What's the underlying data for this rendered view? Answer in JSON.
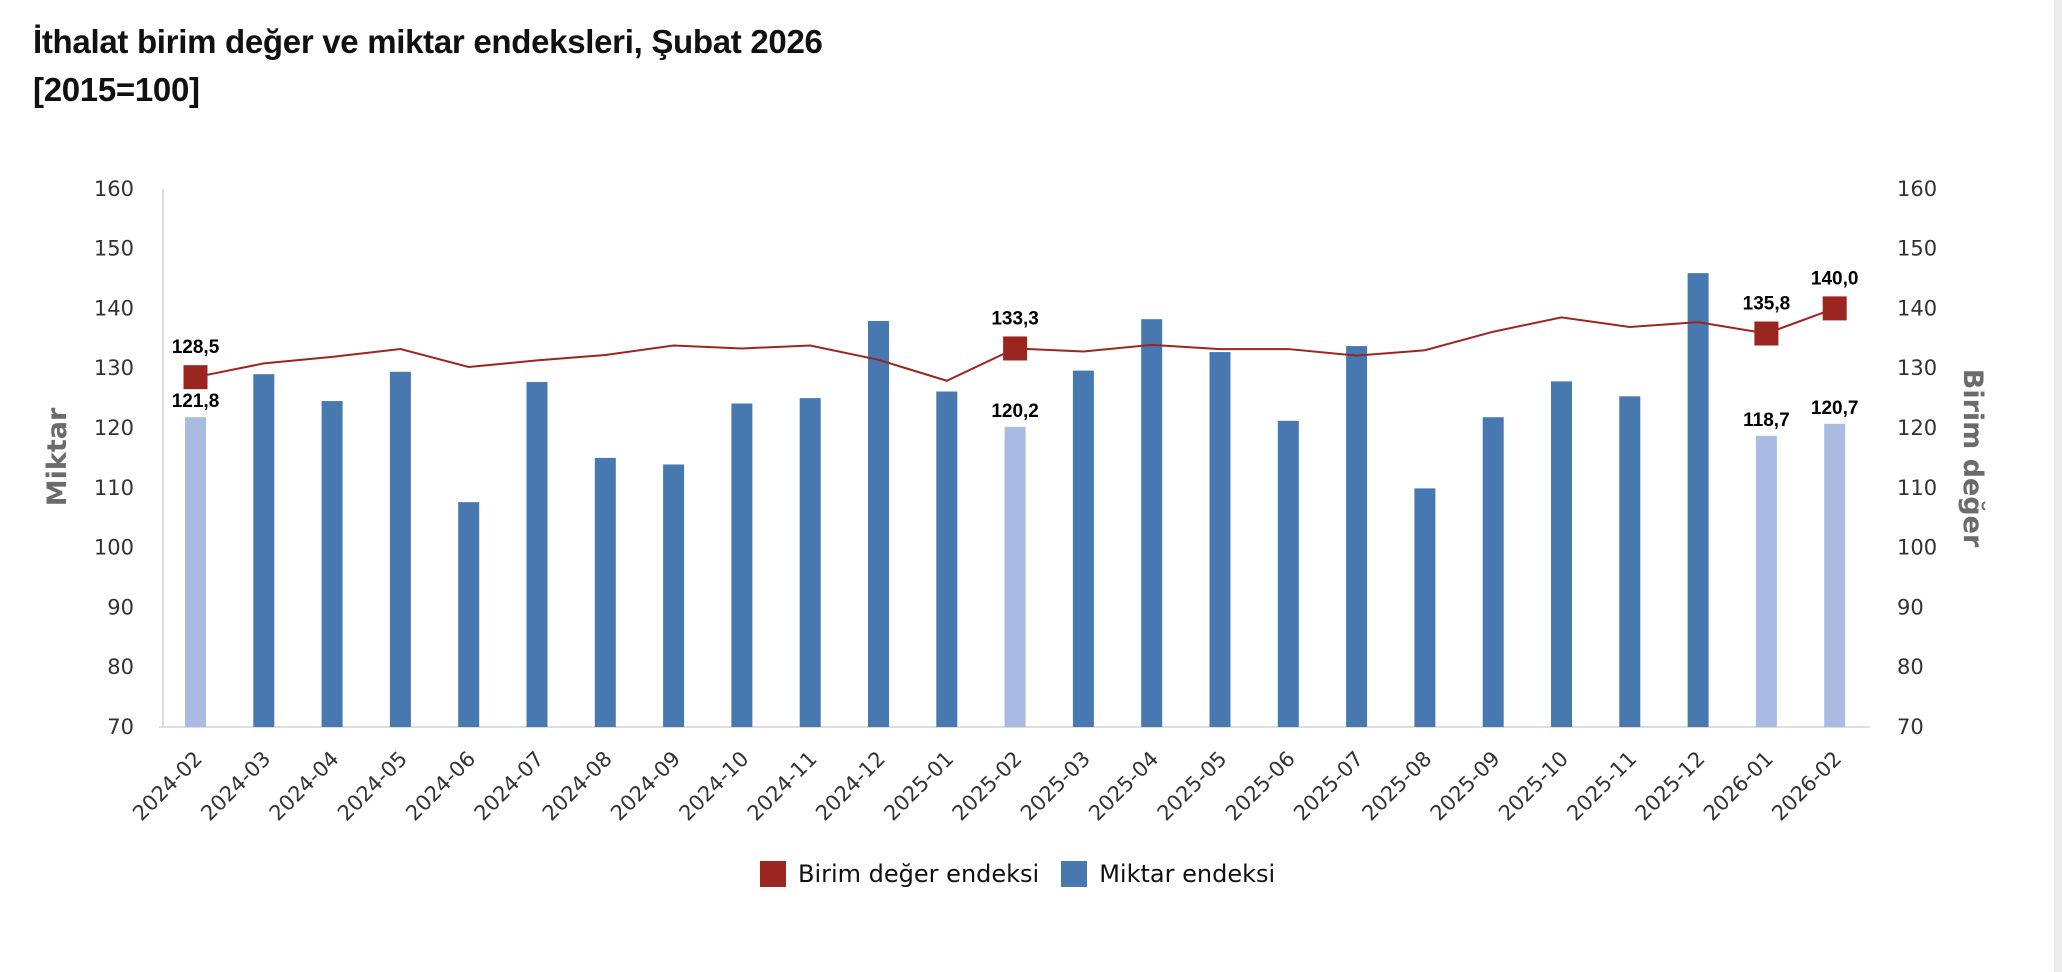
{
  "title": {
    "line1": "İthalat birim değer ve miktar endeksleri, Şubat 2026",
    "line2": "[2015=100]"
  },
  "colors": {
    "bar": "#4779b0",
    "bar_highlight": "#a9bbe0",
    "line": "#9b2620",
    "marker": "#9b2620",
    "axis": "#dddddd"
  },
  "legend": {
    "items": [
      {
        "label": "Birim değer endeksi",
        "color": "#9b2620"
      },
      {
        "label": "Miktar endeksi",
        "color": "#4779b0"
      }
    ],
    "position": "bottom"
  },
  "chart_data": {
    "type": "bar",
    "title": "İthalat birim değer ve miktar endeksleri, Şubat 2026",
    "subtitle": "[2015=100]",
    "categories": [
      "2024-02",
      "2024-03",
      "2024-04",
      "2024-05",
      "2024-06",
      "2024-07",
      "2024-08",
      "2024-09",
      "2024-10",
      "2024-11",
      "2024-12",
      "2025-01",
      "2025-02",
      "2025-03",
      "2025-04",
      "2025-05",
      "2025-06",
      "2025-07",
      "2025-08",
      "2025-09",
      "2025-10",
      "2025-11",
      "2025-12",
      "2026-01",
      "2026-02"
    ],
    "series": [
      {
        "name": "Miktar endeksi",
        "type": "bar",
        "axis": "left",
        "values": [
          121.8,
          129.0,
          124.5,
          129.4,
          107.6,
          127.7,
          115.0,
          113.9,
          124.1,
          125.0,
          137.9,
          126.1,
          120.2,
          129.6,
          138.2,
          132.7,
          121.2,
          133.7,
          109.9,
          121.8,
          127.8,
          125.3,
          145.9,
          118.7,
          120.7
        ],
        "highlighted": [
          0,
          12,
          23,
          24
        ],
        "data_labels": {
          "0": "121,8",
          "12": "120,2",
          "23": "118,7",
          "24": "120,7"
        }
      },
      {
        "name": "Birim değer endeksi",
        "type": "line",
        "axis": "right",
        "values": [
          128.5,
          130.8,
          131.9,
          133.2,
          130.2,
          131.3,
          132.2,
          133.8,
          133.3,
          133.8,
          131.4,
          127.9,
          133.3,
          132.8,
          133.9,
          133.2,
          133.2,
          132.1,
          133.0,
          136.1,
          138.5,
          136.9,
          137.7,
          135.8,
          140.0
        ],
        "markers": [
          0,
          12,
          23,
          24
        ],
        "data_labels": {
          "0": "128,5",
          "12": "133,3",
          "23": "135,8",
          "24": "140,0"
        }
      }
    ],
    "ylabel": "Miktar",
    "y2label": "Birim değer",
    "ylim": [
      70,
      160
    ],
    "y2lim": [
      70,
      160
    ],
    "yticks": [
      "70",
      "80",
      "90",
      "100",
      "110",
      "120",
      "130",
      "140",
      "150",
      "160"
    ],
    "y2ticks": [
      "70",
      "80",
      "90",
      "100",
      "110",
      "120",
      "130",
      "140",
      "150",
      "160"
    ],
    "grid": false,
    "legend_position": "bottom"
  }
}
